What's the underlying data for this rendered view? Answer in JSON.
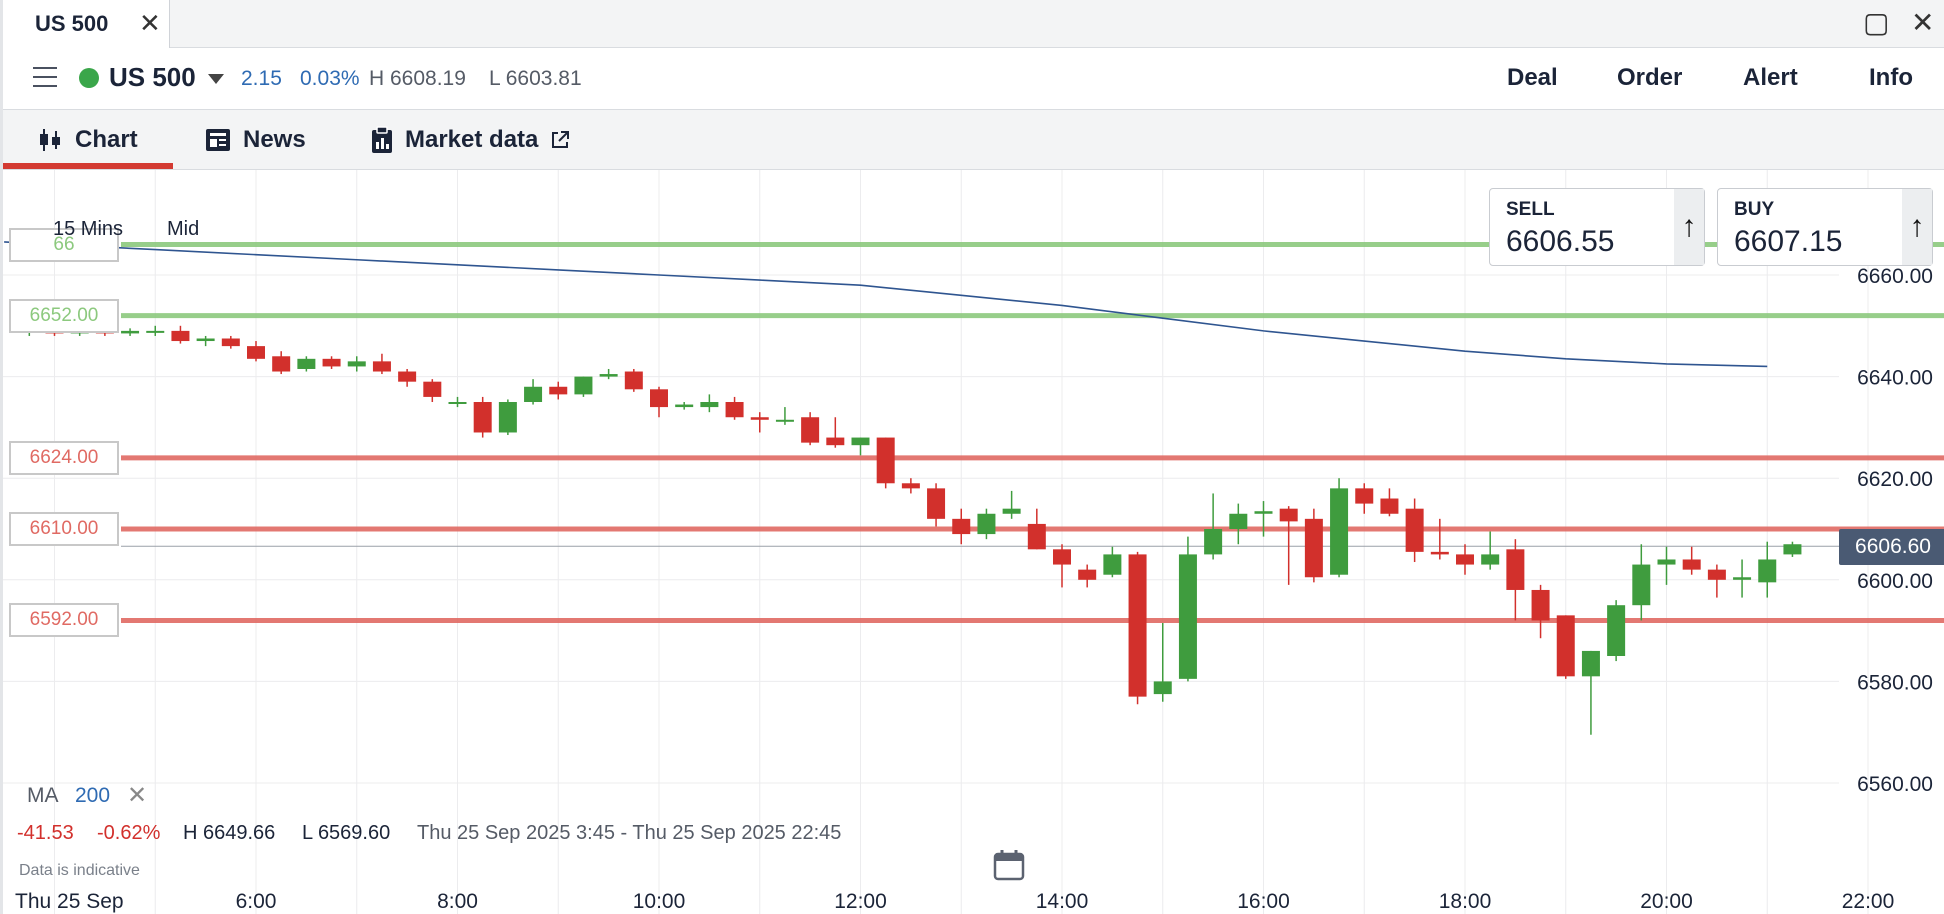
{
  "window": {
    "tab_title": "US 500"
  },
  "header": {
    "symbol": "US 500",
    "status_color": "#3aa64a",
    "change": "2.15",
    "change_pct": "0.03%",
    "high": "H 6608.19",
    "low": "L 6603.81",
    "actions": [
      "Deal",
      "Order",
      "Alert",
      "Info"
    ]
  },
  "subtabs": [
    {
      "label": "Chart",
      "icon": "candlestick-icon",
      "active": true
    },
    {
      "label": "News",
      "icon": "news-icon"
    },
    {
      "label": "Market data",
      "icon": "clipboard-icon",
      "external": true
    }
  ],
  "chart_toolbar": {
    "timeframe": "15 Mins",
    "price_type": "Mid"
  },
  "ticket": {
    "sell_label": "SELL",
    "sell_price": "6606.55",
    "buy_label": "BUY",
    "buy_price": "6607.15"
  },
  "chart_data": {
    "type": "candlestick",
    "x_ticks": [
      "6:00",
      "8:00",
      "10:00",
      "12:00",
      "14:00",
      "16:00",
      "18:00",
      "20:00",
      "22:00"
    ],
    "x_tick_hours": [
      6,
      8,
      10,
      12,
      14,
      16,
      18,
      20,
      22
    ],
    "date_label": "Thu 25 Sep",
    "y_ticks": [
      "6560.00",
      "6580.00",
      "6600.00",
      "6620.00",
      "6640.00",
      "6660.00"
    ],
    "y_tick_values": [
      6560,
      6580,
      6600,
      6620,
      6640,
      6660
    ],
    "ylim": [
      6546,
      6680
    ],
    "current_price": "6606.60",
    "current_value": 6606.6,
    "levels": [
      {
        "label": "66",
        "value": 6666,
        "color": "#8cc97e"
      },
      {
        "label": "6652.00",
        "value": 6652,
        "color": "#8cc97e"
      },
      {
        "label": "6624.00",
        "value": 6624,
        "color": "#e06a63"
      },
      {
        "label": "6610.00",
        "value": 6610,
        "color": "#e06a63"
      },
      {
        "label": "6592.00",
        "value": 6592,
        "color": "#e06a63"
      }
    ],
    "ma_series": {
      "name": "MA 200",
      "points": [
        [
          3.5,
          6666.5
        ],
        [
          4.0,
          6666
        ],
        [
          5.0,
          6665
        ],
        [
          6.0,
          6664
        ],
        [
          7.0,
          6663
        ],
        [
          8.0,
          6662
        ],
        [
          9.0,
          6661
        ],
        [
          10.0,
          6660
        ],
        [
          11.0,
          6659
        ],
        [
          12.0,
          6658
        ],
        [
          13.0,
          6656
        ],
        [
          14.0,
          6654
        ],
        [
          15.0,
          6651.5
        ],
        [
          16.0,
          6649
        ],
        [
          17.0,
          6647
        ],
        [
          18.0,
          6645
        ],
        [
          19.0,
          6643.5
        ],
        [
          20.0,
          6642.5
        ],
        [
          21.0,
          6642
        ]
      ]
    },
    "candles": [
      {
        "t": 3.75,
        "o": 6649,
        "h": 6650,
        "l": 6648,
        "c": 6649
      },
      {
        "t": 4.0,
        "o": 6649,
        "h": 6650,
        "l": 6648,
        "c": 6648.5
      },
      {
        "t": 4.25,
        "o": 6648.5,
        "h": 6649.5,
        "l": 6648,
        "c": 6649
      },
      {
        "t": 4.5,
        "o": 6649,
        "h": 6650,
        "l": 6648,
        "c": 6648.5
      },
      {
        "t": 4.75,
        "o": 6648.5,
        "h": 6649.5,
        "l": 6648,
        "c": 6649
      },
      {
        "t": 5.0,
        "o": 6649,
        "h": 6650,
        "l": 6648,
        "c": 6649
      },
      {
        "t": 5.25,
        "o": 6649,
        "h": 6650,
        "l": 6646.5,
        "c": 6647
      },
      {
        "t": 5.5,
        "o": 6647,
        "h": 6648,
        "l": 6646,
        "c": 6647.5
      },
      {
        "t": 5.75,
        "o": 6647.5,
        "h": 6648,
        "l": 6645.5,
        "c": 6646
      },
      {
        "t": 6.0,
        "o": 6646,
        "h": 6647,
        "l": 6643,
        "c": 6643.5
      },
      {
        "t": 6.25,
        "o": 6644,
        "h": 6645,
        "l": 6640.5,
        "c": 6641
      },
      {
        "t": 6.5,
        "o": 6641.5,
        "h": 6644,
        "l": 6641,
        "c": 6643.5
      },
      {
        "t": 6.75,
        "o": 6643.5,
        "h": 6644,
        "l": 6641.5,
        "c": 6642
      },
      {
        "t": 7.0,
        "o": 6642,
        "h": 6644,
        "l": 6641,
        "c": 6643
      },
      {
        "t": 7.25,
        "o": 6643,
        "h": 6644.5,
        "l": 6640.5,
        "c": 6641
      },
      {
        "t": 7.5,
        "o": 6641,
        "h": 6641.5,
        "l": 6638,
        "c": 6639
      },
      {
        "t": 7.75,
        "o": 6639,
        "h": 6639.5,
        "l": 6635,
        "c": 6636
      },
      {
        "t": 8.0,
        "o": 6635,
        "h": 6636,
        "l": 6634,
        "c": 6635
      },
      {
        "t": 8.25,
        "o": 6635,
        "h": 6636,
        "l": 6628,
        "c": 6629
      },
      {
        "t": 8.5,
        "o": 6629,
        "h": 6635.5,
        "l": 6628.5,
        "c": 6635
      },
      {
        "t": 8.75,
        "o": 6635,
        "h": 6639.5,
        "l": 6634.5,
        "c": 6638
      },
      {
        "t": 9.0,
        "o": 6638,
        "h": 6639,
        "l": 6635.5,
        "c": 6636.5
      },
      {
        "t": 9.25,
        "o": 6636.5,
        "h": 6640,
        "l": 6636,
        "c": 6640
      },
      {
        "t": 9.5,
        "o": 6640,
        "h": 6641.5,
        "l": 6639.5,
        "c": 6640.5
      },
      {
        "t": 9.75,
        "o": 6641,
        "h": 6641.5,
        "l": 6637,
        "c": 6637.5
      },
      {
        "t": 10.0,
        "o": 6637.5,
        "h": 6638,
        "l": 6632,
        "c": 6634
      },
      {
        "t": 10.25,
        "o": 6634,
        "h": 6635,
        "l": 6633.5,
        "c": 6634.5
      },
      {
        "t": 10.5,
        "o": 6634,
        "h": 6636.5,
        "l": 6633,
        "c": 6635
      },
      {
        "t": 10.75,
        "o": 6635,
        "h": 6636,
        "l": 6631.5,
        "c": 6632
      },
      {
        "t": 11.0,
        "o": 6632,
        "h": 6633,
        "l": 6629,
        "c": 6631.5
      },
      {
        "t": 11.25,
        "o": 6631.5,
        "h": 6634,
        "l": 6630.5,
        "c": 6631.5
      },
      {
        "t": 11.5,
        "o": 6632,
        "h": 6633,
        "l": 6626.5,
        "c": 6627
      },
      {
        "t": 11.75,
        "o": 6628,
        "h": 6632,
        "l": 6626,
        "c": 6626.5
      },
      {
        "t": 12.0,
        "o": 6626.5,
        "h": 6628,
        "l": 6624.5,
        "c": 6628
      },
      {
        "t": 12.25,
        "o": 6628,
        "h": 6628,
        "l": 6618,
        "c": 6619
      },
      {
        "t": 12.5,
        "o": 6619,
        "h": 6620,
        "l": 6617,
        "c": 6618
      },
      {
        "t": 12.75,
        "o": 6618,
        "h": 6619,
        "l": 6610.5,
        "c": 6612
      },
      {
        "t": 13.0,
        "o": 6612,
        "h": 6614,
        "l": 6607,
        "c": 6609
      },
      {
        "t": 13.25,
        "o": 6609,
        "h": 6614,
        "l": 6608,
        "c": 6613
      },
      {
        "t": 13.5,
        "o": 6613,
        "h": 6617.5,
        "l": 6612,
        "c": 6614
      },
      {
        "t": 13.75,
        "o": 6611,
        "h": 6614,
        "l": 6606,
        "c": 6606
      },
      {
        "t": 14.0,
        "o": 6606,
        "h": 6607,
        "l": 6598.5,
        "c": 6603
      },
      {
        "t": 14.25,
        "o": 6602,
        "h": 6603,
        "l": 6598.5,
        "c": 6600
      },
      {
        "t": 14.5,
        "o": 6601,
        "h": 6606.5,
        "l": 6600.5,
        "c": 6605
      },
      {
        "t": 14.75,
        "o": 6605,
        "h": 6605.5,
        "l": 6575.5,
        "c": 6577
      },
      {
        "t": 15.0,
        "o": 6577.5,
        "h": 6591.5,
        "l": 6576,
        "c": 6580
      },
      {
        "t": 15.25,
        "o": 6580.5,
        "h": 6608.5,
        "l": 6580,
        "c": 6605
      },
      {
        "t": 15.5,
        "o": 6605,
        "h": 6617,
        "l": 6604,
        "c": 6610
      },
      {
        "t": 15.75,
        "o": 6610,
        "h": 6615,
        "l": 6607,
        "c": 6613
      },
      {
        "t": 16.0,
        "o": 6613,
        "h": 6615.5,
        "l": 6608.5,
        "c": 6613.5
      },
      {
        "t": 16.25,
        "o": 6614,
        "h": 6614.5,
        "l": 6599,
        "c": 6611.5
      },
      {
        "t": 16.5,
        "o": 6612,
        "h": 6614,
        "l": 6599.5,
        "c": 6600.5
      },
      {
        "t": 16.75,
        "o": 6601,
        "h": 6620,
        "l": 6600.5,
        "c": 6618
      },
      {
        "t": 17.0,
        "o": 6618,
        "h": 6619,
        "l": 6613,
        "c": 6615
      },
      {
        "t": 17.25,
        "o": 6616,
        "h": 6618,
        "l": 6612.5,
        "c": 6613
      },
      {
        "t": 17.5,
        "o": 6614,
        "h": 6616,
        "l": 6603.5,
        "c": 6605.5
      },
      {
        "t": 17.75,
        "o": 6605.5,
        "h": 6612,
        "l": 6604,
        "c": 6605
      },
      {
        "t": 18.0,
        "o": 6605,
        "h": 6607,
        "l": 6601,
        "c": 6603
      },
      {
        "t": 18.25,
        "o": 6603,
        "h": 6609.5,
        "l": 6602,
        "c": 6605
      },
      {
        "t": 18.5,
        "o": 6606,
        "h": 6608,
        "l": 6592,
        "c": 6598
      },
      {
        "t": 18.75,
        "o": 6598,
        "h": 6599,
        "l": 6588.5,
        "c": 6592
      },
      {
        "t": 19.0,
        "o": 6593,
        "h": 6593,
        "l": 6580.5,
        "c": 6581
      },
      {
        "t": 19.25,
        "o": 6581,
        "h": 6586,
        "l": 6569.5,
        "c": 6586
      },
      {
        "t": 19.5,
        "o": 6585,
        "h": 6596,
        "l": 6584,
        "c": 6595
      },
      {
        "t": 19.75,
        "o": 6595,
        "h": 6607,
        "l": 6592,
        "c": 6603
      },
      {
        "t": 20.0,
        "o": 6603,
        "h": 6606.5,
        "l": 6599,
        "c": 6604
      },
      {
        "t": 20.25,
        "o": 6604,
        "h": 6606.5,
        "l": 6601,
        "c": 6602
      },
      {
        "t": 20.5,
        "o": 6602,
        "h": 6603,
        "l": 6596.5,
        "c": 6600
      },
      {
        "t": 20.75,
        "o": 6600,
        "h": 6604,
        "l": 6596.5,
        "c": 6600.5
      },
      {
        "t": 21.0,
        "o": 6599.5,
        "h": 6607.5,
        "l": 6596.5,
        "c": 6604
      },
      {
        "t": 21.25,
        "o": 6605,
        "h": 6607.5,
        "l": 6604.5,
        "c": 6607
      }
    ]
  },
  "indicator": {
    "name": "MA",
    "period": "200"
  },
  "stats": {
    "change": "-41.53",
    "change_pct": "-0.62%",
    "high": "H 6649.66",
    "low": "L 6569.60",
    "range": "Thu 25 Sep 2025 3:45 - Thu 25 Sep 2025 22:45"
  },
  "disclaimer": "Data is indicative",
  "colors": {
    "up": "#3f9c3e",
    "down": "#d2302c",
    "ma": "#2f5590",
    "accent": "#d33a32"
  }
}
